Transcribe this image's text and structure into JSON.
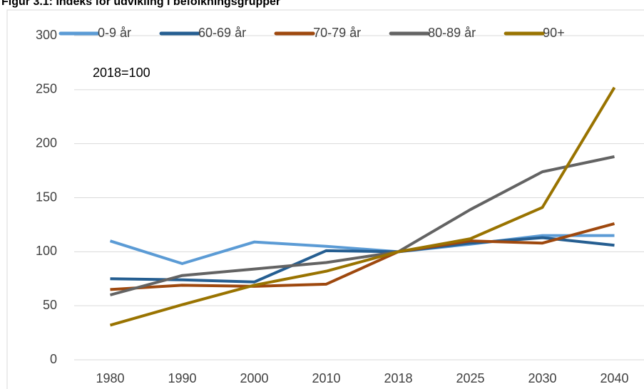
{
  "chart_data": {
    "type": "line",
    "title": "Figur 3.1: Indeks for udvikling i befolkningsgrupper",
    "annotation": "2018=100",
    "categories": [
      "1980",
      "1990",
      "2000",
      "2010",
      "2018",
      "2025",
      "2030",
      "2040"
    ],
    "series": [
      {
        "name": "0-9 år",
        "color": "#5b9bd5",
        "values": [
          110,
          89,
          109,
          105,
          100,
          107,
          115,
          115
        ]
      },
      {
        "name": "60-69 år",
        "color": "#255e91",
        "values": [
          75,
          74,
          72,
          101,
          100,
          108,
          113,
          106
        ]
      },
      {
        "name": "70-79 år",
        "color": "#9e480e",
        "values": [
          65,
          69,
          68,
          70,
          100,
          110,
          108,
          126
        ]
      },
      {
        "name": "80-89 år",
        "color": "#636363",
        "values": [
          60,
          78,
          84,
          90,
          100,
          139,
          174,
          188
        ]
      },
      {
        "name": "90+",
        "color": "#997300",
        "values": [
          32,
          51,
          69,
          82,
          100,
          112,
          141,
          252
        ]
      }
    ],
    "ylim": [
      0,
      300
    ],
    "yticks": [
      0,
      50,
      100,
      150,
      200,
      250,
      300
    ],
    "grid": true,
    "legend": "top"
  }
}
